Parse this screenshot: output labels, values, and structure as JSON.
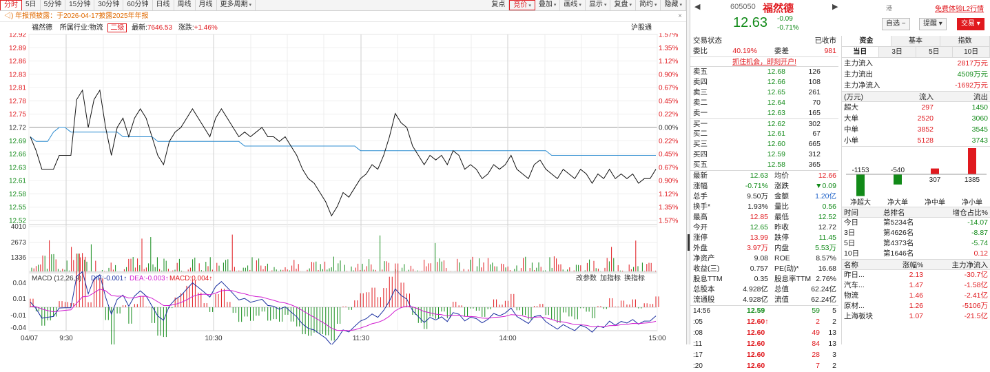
{
  "toolbar": {
    "left": [
      "分时",
      "5日",
      "5分钟",
      "15分钟",
      "30分钟",
      "60分钟",
      "日线",
      "周线",
      "月线",
      "更多周期"
    ],
    "right": [
      "复点",
      "竞价",
      "叠加",
      "画线",
      "显示",
      "复盘",
      "简约",
      "隐藏"
    ]
  },
  "notice": {
    "text": "年报预披露：于2026-04-17披露2025年年报",
    "close": "×"
  },
  "info": {
    "name": "福然德",
    "industry_label": "所属行业:",
    "industry": "物流",
    "level": "二级",
    "latest_label": "最新:",
    "latest": "7646.53",
    "change_label": "涨跌:",
    "change": "+1.46%",
    "market": "沪股通"
  },
  "axis": {
    "price_ticks": [
      "12.92",
      "12.89",
      "12.86",
      "12.83",
      "12.81",
      "12.78",
      "12.75",
      "12.72",
      "12.69",
      "12.66",
      "12.63",
      "12.61",
      "12.58",
      "12.55",
      "12.52"
    ],
    "pct_ticks": [
      "1.57%",
      "1.35%",
      "1.12%",
      "0.90%",
      "0.67%",
      "0.45%",
      "0.22%",
      "0.00%",
      "0.22%",
      "0.45%",
      "0.67%",
      "0.90%",
      "1.12%",
      "1.35%",
      "1.57%"
    ],
    "vol_ticks": [
      "4010",
      "2673",
      "1336"
    ],
    "macd_ticks": [
      "0.04",
      "0.01",
      "-0.01",
      "-0.04"
    ],
    "time_labels": [
      "04/07",
      "9:30",
      "10:30",
      "11:30",
      "14:00",
      "15:00"
    ]
  },
  "macd": {
    "title": "MACD (12,26,9)",
    "dif": "DIF:-0.001",
    "dea": "DEA:-0.003",
    "macd": "MACD:0.004",
    "links": [
      "改参数",
      "加指标",
      "换指标"
    ]
  },
  "chart_data": {
    "type": "line",
    "prev_close": 12.72,
    "ylim": [
      12.52,
      12.92
    ],
    "price": [
      12.7,
      12.67,
      12.63,
      12.63,
      12.63,
      12.66,
      12.66,
      12.66,
      12.78,
      12.8,
      12.72,
      12.78,
      12.8,
      12.72,
      12.66,
      12.72,
      12.74,
      12.7,
      12.74,
      12.76,
      12.74,
      12.7,
      12.66,
      12.64,
      12.69,
      12.71,
      12.72,
      12.74,
      12.76,
      12.74,
      12.72,
      12.7,
      12.74,
      12.76,
      12.74,
      12.72,
      12.7,
      12.71,
      12.7,
      12.71,
      12.72,
      12.7,
      12.7,
      12.69,
      12.7,
      12.68,
      12.66,
      12.63,
      12.61,
      12.6,
      12.58,
      12.56,
      12.53,
      12.55,
      12.58,
      12.57,
      12.59,
      12.61,
      12.62,
      12.64,
      12.63,
      12.66,
      12.7,
      12.75,
      12.73,
      12.72,
      12.68,
      12.66,
      12.64,
      12.66,
      12.65,
      12.66,
      12.64,
      12.67,
      12.66,
      12.63,
      12.64,
      12.63,
      12.61,
      12.62,
      12.64,
      12.63,
      12.64,
      12.66,
      12.63,
      12.62,
      12.61,
      12.64,
      12.65,
      12.63,
      12.62,
      12.61,
      12.63,
      12.62,
      12.61,
      12.63,
      12.62,
      12.6,
      12.62,
      12.61,
      12.63,
      12.61,
      12.62,
      12.61,
      12.62,
      12.6,
      12.61,
      12.61,
      12.63
    ],
    "avg": [
      12.7,
      12.69,
      12.69,
      12.69,
      12.71,
      12.72,
      12.72,
      12.71,
      12.71,
      12.71,
      12.71,
      12.71,
      12.71,
      12.71,
      12.71,
      12.71,
      12.7,
      12.7,
      12.7,
      12.7,
      12.7,
      12.7,
      12.69,
      12.69,
      12.69,
      12.69,
      12.69,
      12.69,
      12.69,
      12.69,
      12.69,
      12.69,
      12.69,
      12.69,
      12.69,
      12.69,
      12.69,
      12.68,
      12.68,
      12.68,
      12.68,
      12.68,
      12.68,
      12.68,
      12.68,
      12.68,
      12.68,
      12.68,
      12.68,
      12.68,
      12.68,
      12.68,
      12.68,
      12.68,
      12.68,
      12.68,
      12.68,
      12.67,
      12.67,
      12.67,
      12.67,
      12.67,
      12.67,
      12.67,
      12.67,
      12.67,
      12.67,
      12.67,
      12.67,
      12.67,
      12.67,
      12.67,
      12.67,
      12.67,
      12.67,
      12.67,
      12.67,
      12.67,
      12.67,
      12.67,
      12.67,
      12.67,
      12.67,
      12.67,
      12.67,
      12.67,
      12.67,
      12.67,
      12.67,
      12.67,
      12.66,
      12.66,
      12.66,
      12.66,
      12.66,
      12.66,
      12.66,
      12.66,
      12.66,
      12.66,
      12.66,
      12.66,
      12.66,
      12.66,
      12.66,
      12.66,
      12.66,
      12.66,
      12.66
    ],
    "volume_max": 4010
  },
  "stock": {
    "prev": "◀",
    "next": "▶",
    "code": "605050",
    "name": "福然德",
    "market_flag": "港",
    "l2": "免费体验L2行情",
    "price": "12.63",
    "chg": "-0.09",
    "pct": "-0.71%",
    "btn_watch": "自选",
    "btn_alert": "提醒",
    "btn_trade": "交易"
  },
  "status": {
    "label": "交易状态",
    "value": "已收市",
    "ratio_label": "委比",
    "ratio": "40.19%",
    "diff_label": "委差",
    "diff": "981",
    "promo": "抓住机会，即刻开户!"
  },
  "sells": [
    [
      "卖五",
      "12.68",
      "126"
    ],
    [
      "卖四",
      "12.66",
      "108"
    ],
    [
      "卖三",
      "12.65",
      "261"
    ],
    [
      "卖二",
      "12.64",
      "70"
    ],
    [
      "卖一",
      "12.63",
      "165"
    ]
  ],
  "buys": [
    [
      "买一",
      "12.62",
      "302"
    ],
    [
      "买二",
      "12.61",
      "67"
    ],
    [
      "买三",
      "12.60",
      "665"
    ],
    [
      "买四",
      "12.59",
      "312"
    ],
    [
      "买五",
      "12.58",
      "365"
    ]
  ],
  "quote": [
    [
      "最新",
      "12.63",
      "green",
      "均价",
      "12.66",
      "red"
    ],
    [
      "涨幅",
      "-0.71%",
      "green",
      "涨跌",
      "▼0.09",
      "green"
    ],
    [
      "总手",
      "9.50万",
      "",
      "金额",
      "1.20亿",
      "blue"
    ],
    [
      "换手*",
      "1.93%",
      "",
      "量比",
      "0.56",
      "green"
    ],
    [
      "最高",
      "12.85",
      "red",
      "最低",
      "12.52",
      "green"
    ],
    [
      "今开",
      "12.65",
      "green",
      "昨收",
      "12.72",
      ""
    ],
    [
      "涨停",
      "13.99",
      "red",
      "跌停",
      "11.45",
      "green"
    ],
    [
      "外盘",
      "3.97万",
      "red",
      "内盘",
      "5.53万",
      "green"
    ],
    [
      "净资产",
      "9.08",
      "",
      "ROE",
      "8.57%",
      ""
    ],
    [
      "收益(三)",
      "0.757",
      "",
      "PE(动)*",
      "16.68",
      ""
    ],
    [
      "股息TTM",
      "0.35",
      "",
      "股息率TTM",
      "2.76%",
      ""
    ],
    [
      "总股本",
      "4.928亿",
      "",
      "总值",
      "62.24亿",
      ""
    ],
    [
      "流通股",
      "4.928亿",
      "",
      "流值",
      "62.24亿",
      ""
    ]
  ],
  "trades": [
    [
      "14:56",
      "12.59",
      "59",
      "5",
      "green"
    ],
    [
      ":05",
      "12.60↑",
      "2",
      "2",
      "red"
    ],
    [
      ":08",
      "12.60",
      "49",
      "13",
      "red"
    ],
    [
      ":11",
      "12.60",
      "84",
      "13",
      "red"
    ],
    [
      ":17",
      "12.60",
      "28",
      "3",
      "red"
    ],
    [
      ":20",
      "12.60",
      "7",
      "2",
      "red"
    ]
  ],
  "fund": {
    "tabs": [
      "资金",
      "基本",
      "指数"
    ],
    "periods": [
      "当日",
      "3日",
      "5日",
      "10日"
    ],
    "flow": [
      [
        "主力流入",
        "2817万元",
        "red"
      ],
      [
        "主力流出",
        "4509万元",
        "green"
      ],
      [
        "主力净流入",
        "-1692万元",
        "red"
      ]
    ],
    "hdr": [
      "(万元)",
      "流入",
      "流出"
    ],
    "sizes": [
      [
        "超大",
        "297",
        "1450"
      ],
      [
        "大单",
        "2520",
        "3060"
      ],
      [
        "中单",
        "3852",
        "3545"
      ],
      [
        "小单",
        "5128",
        "3743"
      ]
    ],
    "bar_values": [
      -1153,
      -540,
      307,
      1385
    ],
    "bar_labels": [
      "-1153",
      "-540",
      "307",
      "1385"
    ],
    "bar_names": [
      "净超大",
      "净大单",
      "净中单",
      "净小单"
    ],
    "rank_hdr": [
      "时间",
      "总排名",
      "增仓占比%"
    ],
    "ranks": [
      [
        "今日",
        "第5234名",
        "-14.07",
        "green"
      ],
      [
        "3日",
        "第4626名",
        "-8.87",
        "green"
      ],
      [
        "5日",
        "第4373名",
        "-5.74",
        "green"
      ],
      [
        "10日",
        "第1646名",
        "0.12",
        "red"
      ]
    ],
    "sec_hdr": [
      "名称",
      "涨幅%",
      "主力净流入"
    ],
    "sectors": [
      [
        "昨日...",
        "2.13",
        "-30.7亿"
      ],
      [
        "汽车...",
        "1.47",
        "-1.58亿"
      ],
      [
        "物流",
        "1.46",
        "-2.41亿"
      ],
      [
        "原材...",
        "1.26",
        "-5106万"
      ],
      [
        "上海板块",
        "1.07",
        "-21.5亿"
      ]
    ]
  }
}
